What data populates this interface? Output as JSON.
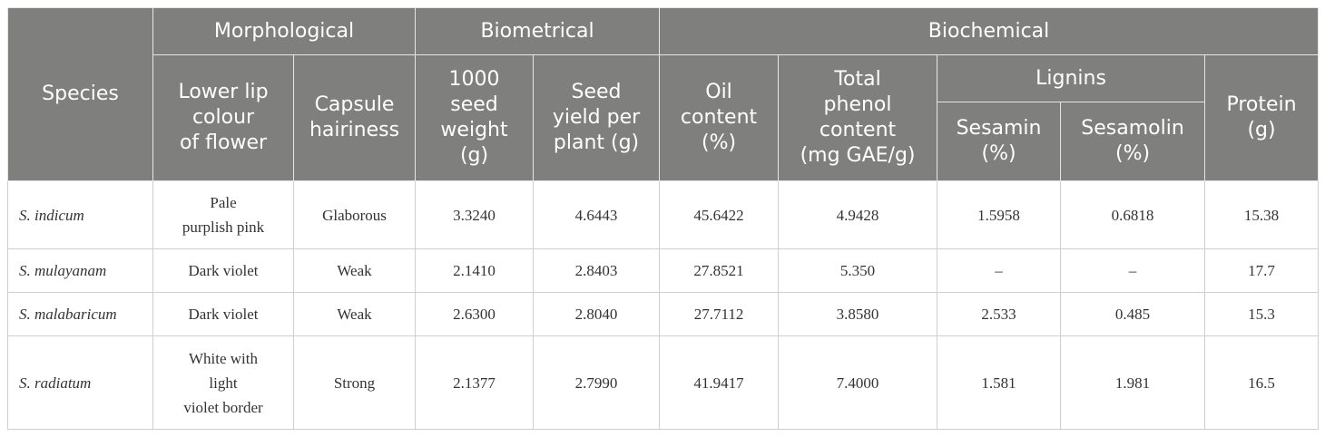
{
  "header": {
    "species": "Species",
    "morphological": "Morphological",
    "biometrical": "Biometrical",
    "biochemical": "Biochemical",
    "lower_lip": "Lower lip\ncolour\nof flower",
    "capsule": "Capsule\nhairiness",
    "seed_weight": "1000\nseed\nweight\n(g)",
    "seed_yield": "Seed\nyield per\nplant (g)",
    "oil": "Oil\ncontent\n(%)",
    "phenol": "Total\nphenol\ncontent\n(mg GAE/g)",
    "lignins": "Lignins",
    "sesamin": "Sesamin\n(%)",
    "sesamolin": "Sesamolin\n(%)",
    "protein": "Protein\n(g)"
  },
  "rows": [
    {
      "species": "S. indicum",
      "lower_lip": "Pale\npurplish pink",
      "capsule": "Glaborous",
      "seed_weight": "3.3240",
      "seed_yield": "4.6443",
      "oil": "45.6422",
      "phenol": "4.9428",
      "sesamin": "1.5958",
      "sesamolin": "0.6818",
      "protein": "15.38"
    },
    {
      "species": "S. mulayanam",
      "lower_lip": "Dark violet",
      "capsule": "Weak",
      "seed_weight": "2.1410",
      "seed_yield": "2.8403",
      "oil": "27.8521",
      "phenol": "5.350",
      "sesamin": "–",
      "sesamolin": "–",
      "protein": "17.7"
    },
    {
      "species": "S. malabaricum",
      "lower_lip": "Dark violet",
      "capsule": "Weak",
      "seed_weight": "2.6300",
      "seed_yield": "2.8040",
      "oil": "27.7112",
      "phenol": "3.8580",
      "sesamin": "2.533",
      "sesamolin": "0.485",
      "protein": "15.3"
    },
    {
      "species": "S. radiatum",
      "lower_lip": "White with\nlight\nviolet border",
      "capsule": "Strong",
      "seed_weight": "2.1377",
      "seed_yield": "2.7990",
      "oil": "41.9417",
      "phenol": "7.4000",
      "sesamin": "1.581",
      "sesamolin": "1.981",
      "protein": "16.5"
    }
  ],
  "colors": {
    "header_bg": "#7f7f7d",
    "header_text": "#ffffff",
    "body_text": "#333333"
  }
}
